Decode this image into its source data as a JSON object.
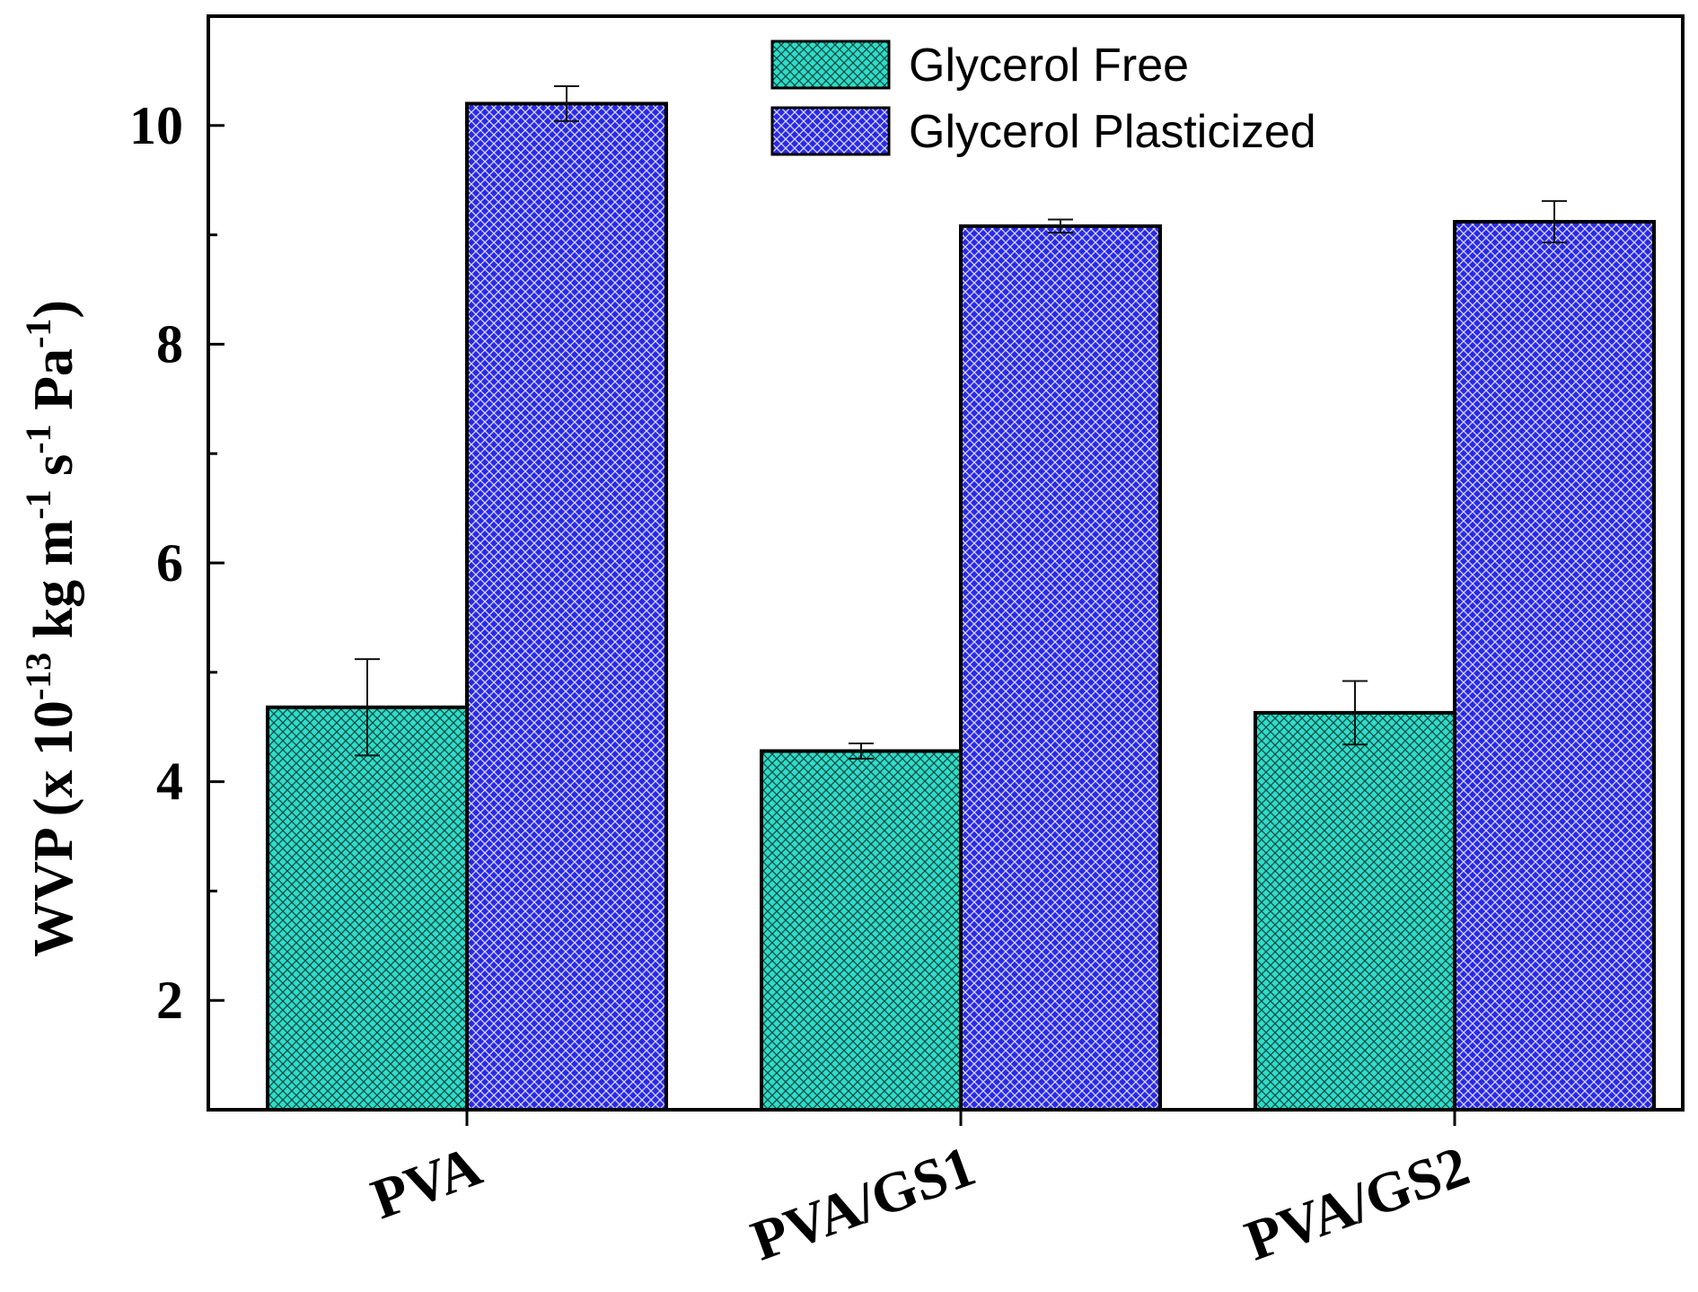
{
  "chart_data": {
    "type": "bar",
    "title": "",
    "xlabel": "",
    "ylabel": {
      "prefix": "WVP (x 10",
      "exp1": "-13",
      "part2": " kg m",
      "exp2": "-1",
      "part3": " s",
      "exp3": "-1",
      "part4": " Pa",
      "exp4": "-1",
      "suffix": ")"
    },
    "categories": [
      "PVA",
      "PVA/GS1",
      "PVA/GS2"
    ],
    "series": [
      {
        "name": "Glycerol Free",
        "color": "#2fdcc8",
        "values": [
          4.68,
          4.28,
          4.63
        ],
        "errors": [
          0.44,
          0.07,
          0.29
        ]
      },
      {
        "name": "Glycerol Plasticized",
        "color": "#2929e8",
        "values": [
          10.2,
          9.08,
          9.12
        ],
        "errors": [
          0.16,
          0.06,
          0.19
        ]
      }
    ],
    "ylim": [
      1,
      11
    ],
    "yticks": [
      2,
      4,
      6,
      8,
      10
    ],
    "ytick_labels": [
      "2",
      "4",
      "6",
      "8",
      "10"
    ],
    "grid": false,
    "legend_position": "top-right"
  }
}
